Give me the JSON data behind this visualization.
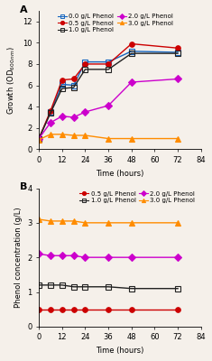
{
  "panel_A": {
    "time": [
      0,
      6,
      12,
      18,
      24,
      36,
      48,
      72
    ],
    "series": [
      {
        "label": "0.0 g/L Phenol",
        "color": "#1565C0",
        "marker": "s",
        "values": [
          1.0,
          3.5,
          6.1,
          6.0,
          8.2,
          8.2,
          9.2,
          9.1
        ]
      },
      {
        "label": "0.5 g/L Phenol",
        "color": "#CC0000",
        "marker": "o",
        "values": [
          1.0,
          3.6,
          6.5,
          6.6,
          8.0,
          8.0,
          9.9,
          9.5
        ]
      },
      {
        "label": "1.0 g/L Phenol",
        "color": "#222222",
        "marker": "s",
        "values": [
          1.0,
          3.4,
          5.7,
          5.8,
          7.5,
          7.5,
          9.0,
          9.0
        ]
      },
      {
        "label": "2.0 g/L Phenol",
        "color": "#CC00CC",
        "marker": "D",
        "values": [
          1.0,
          2.5,
          3.1,
          3.0,
          3.5,
          4.1,
          6.3,
          6.6
        ]
      },
      {
        "label": "3.0 g/L Phenol",
        "color": "#FF8C00",
        "marker": "^",
        "values": [
          0.9,
          1.4,
          1.4,
          1.3,
          1.3,
          1.0,
          1.0,
          1.0
        ]
      }
    ],
    "ylabel": "Growth (OD$_{600\\,nm}$)",
    "xlabel": "Time (hours)",
    "ylim": [
      0,
      13
    ],
    "yticks": [
      0,
      2,
      4,
      6,
      8,
      10,
      12
    ],
    "xlim": [
      0,
      84
    ],
    "xticks": [
      0,
      12,
      24,
      36,
      48,
      60,
      72,
      84
    ]
  },
  "panel_B": {
    "time": [
      0,
      6,
      12,
      18,
      24,
      36,
      48,
      72
    ],
    "series": [
      {
        "label": "0.5 g/L Phenol",
        "color": "#CC0000",
        "marker": "o",
        "values": [
          0.5,
          0.5,
          0.5,
          0.5,
          0.5,
          0.5,
          0.5,
          0.5
        ]
      },
      {
        "label": "1.0 g/L Phenol",
        "color": "#222222",
        "marker": "s",
        "values": [
          1.2,
          1.2,
          1.2,
          1.15,
          1.15,
          1.15,
          1.1,
          1.1
        ]
      },
      {
        "label": "2.0 g/L Phenol",
        "color": "#CC00CC",
        "marker": "D",
        "values": [
          2.1,
          2.05,
          2.05,
          2.05,
          2.0,
          2.0,
          2.0,
          2.0
        ]
      },
      {
        "label": "3.0 g/L Phenol",
        "color": "#FF8C00",
        "marker": "^",
        "values": [
          3.1,
          3.05,
          3.05,
          3.05,
          3.0,
          3.0,
          3.0,
          3.0
        ]
      }
    ],
    "ylabel": "Phenol concentration (g/L)",
    "xlabel": "Time (hours)",
    "ylim": [
      0,
      4
    ],
    "yticks": [
      0,
      1,
      2,
      3,
      4
    ],
    "xlim": [
      0,
      84
    ],
    "xticks": [
      0,
      12,
      24,
      36,
      48,
      60,
      72,
      84
    ]
  },
  "background_color": "#f5f0ea",
  "markersize": 4,
  "linewidth": 1.0,
  "fontsize_label": 6,
  "fontsize_tick": 6,
  "fontsize_legend": 5
}
